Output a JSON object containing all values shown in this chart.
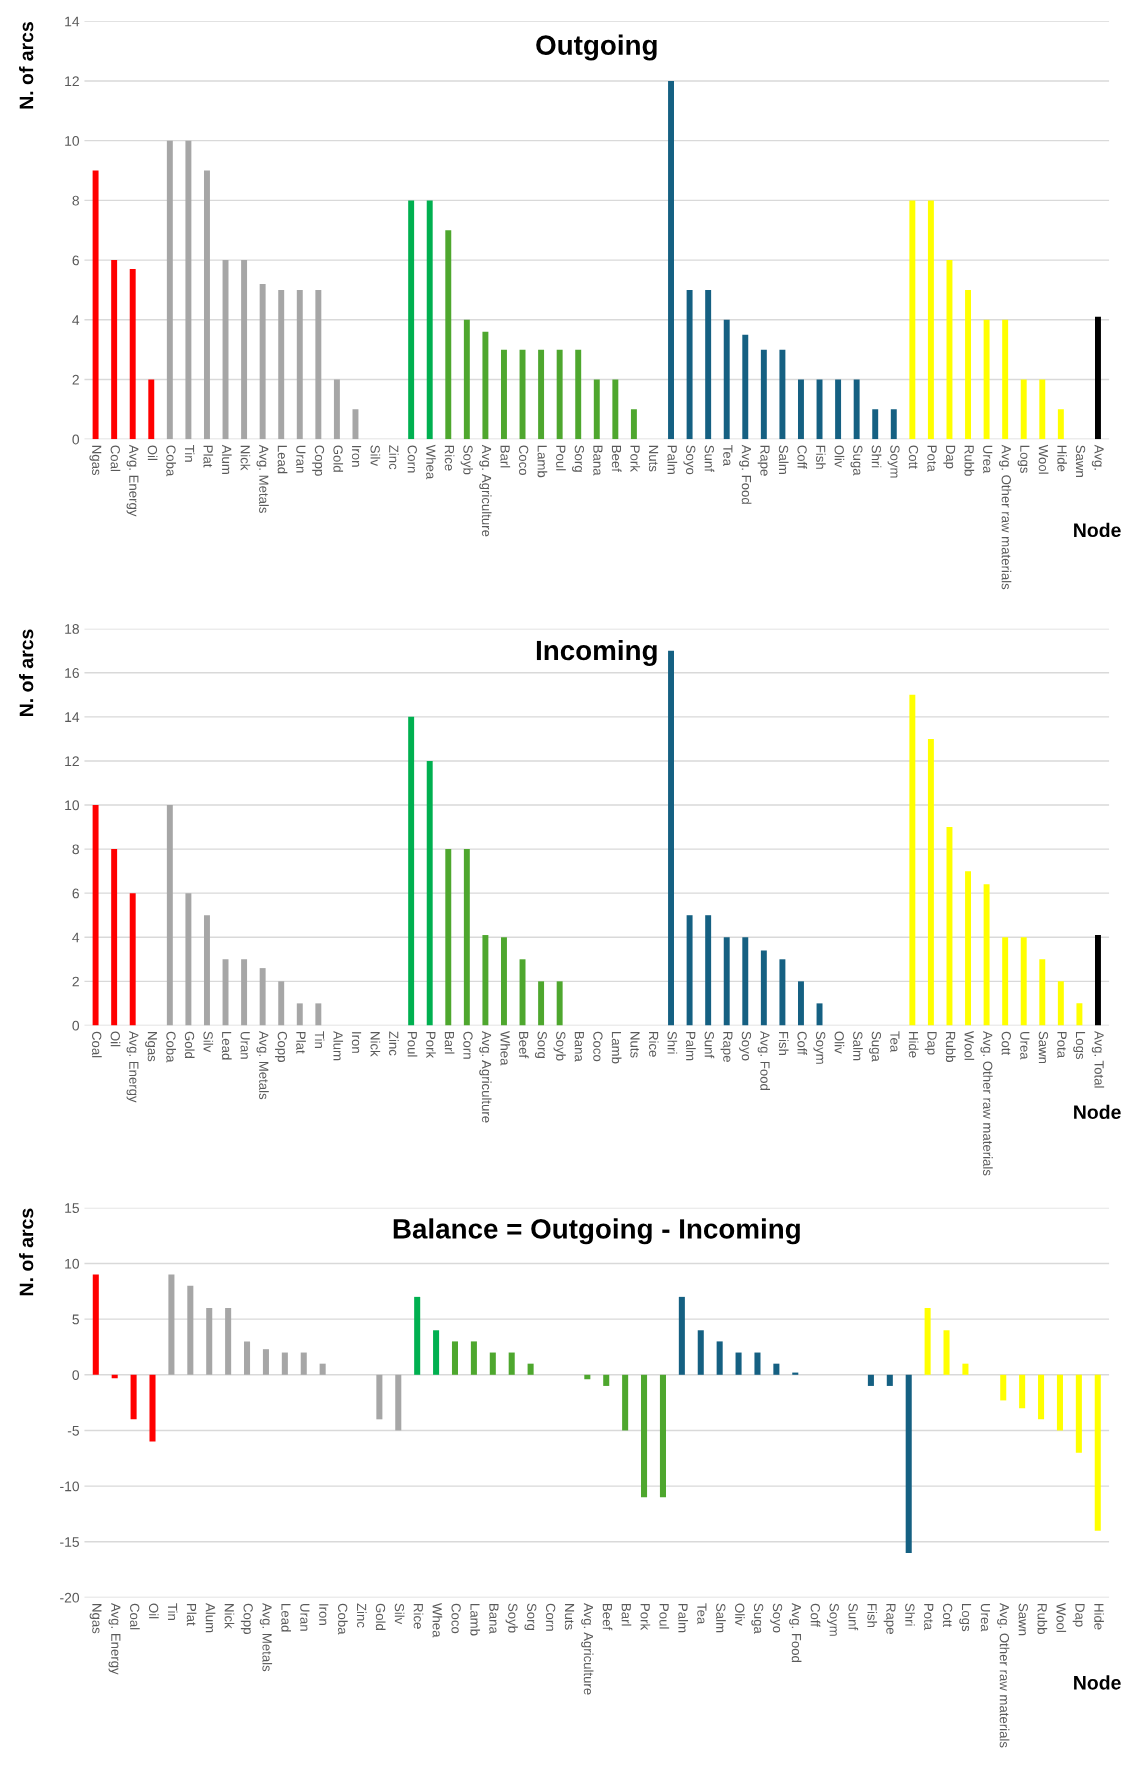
{
  "chart_data": [
    {
      "type": "bar",
      "title": "Outgoing",
      "xlabel": "Node",
      "ylabel": "N. of arcs",
      "grid": "y",
      "ylim": [
        0,
        14
      ],
      "yticks": [
        0,
        2,
        4,
        6,
        8,
        10,
        12,
        14
      ],
      "categories": [
        "Ngas",
        "Coal",
        "Avg. Energy",
        "Oil",
        "Coba",
        "Tin",
        "Plat",
        "Alum",
        "Nick",
        "Avg. Metals",
        "Lead",
        "Uran",
        "Copp",
        "Gold",
        "Iron",
        "Silv",
        "Zinc",
        "Corn",
        "Whea",
        "Rice",
        "Soyb",
        "Avg. Agriculture",
        "Barl",
        "Coco",
        "Lamb",
        "Poul",
        "Sorg",
        "Bana",
        "Beef",
        "Pork",
        "Nuts",
        "Palm",
        "Soyo",
        "Sunf",
        "Tea",
        "Avg. Food",
        "Rape",
        "Salm",
        "Coff",
        "Fish",
        "Oliv",
        "Suga",
        "Shri",
        "Soym",
        "Cott",
        "Pota",
        "Dap",
        "Rubb",
        "Urea",
        "Avg. Other raw materials",
        "Logs",
        "Wool",
        "Hide",
        "Sawn",
        "Avg."
      ],
      "values": [
        9,
        6,
        5.7,
        2,
        10,
        10,
        9,
        6,
        6,
        5.2,
        5,
        5,
        5,
        2,
        1,
        0,
        0,
        8,
        8,
        7,
        4,
        3.6,
        3,
        3,
        3,
        3,
        3,
        2,
        2,
        1,
        0,
        12,
        5,
        5,
        4,
        3.5,
        3,
        3,
        2,
        2,
        2,
        2,
        1,
        1,
        8,
        8,
        6,
        5,
        4,
        4,
        2,
        2,
        1,
        0,
        4.1
      ],
      "colors": [
        "#ff0000",
        "#ff0000",
        "#ff0000",
        "#ff0000",
        "#a6a6a6",
        "#a6a6a6",
        "#a6a6a6",
        "#a6a6a6",
        "#a6a6a6",
        "#a6a6a6",
        "#a6a6a6",
        "#a6a6a6",
        "#a6a6a6",
        "#a6a6a6",
        "#a6a6a6",
        "#a6a6a6",
        "#a6a6a6",
        "#00b050",
        "#00b050",
        "#4ea72e",
        "#4ea72e",
        "#4ea72e",
        "#4ea72e",
        "#4ea72e",
        "#4ea72e",
        "#4ea72e",
        "#4ea72e",
        "#4ea72e",
        "#4ea72e",
        "#4ea72e",
        "#4ea72e",
        "#156082",
        "#156082",
        "#156082",
        "#156082",
        "#156082",
        "#156082",
        "#156082",
        "#156082",
        "#156082",
        "#156082",
        "#156082",
        "#156082",
        "#156082",
        "#ffff00",
        "#ffff00",
        "#ffff00",
        "#ffff00",
        "#ffff00",
        "#ffff00",
        "#ffff00",
        "#ffff00",
        "#ffff00",
        "#ffff00",
        "#000000"
      ]
    },
    {
      "type": "bar",
      "title": "Incoming",
      "xlabel": "Node",
      "ylabel": "N. of arcs",
      "grid": "y",
      "ylim": [
        0,
        18
      ],
      "yticks": [
        0,
        2,
        4,
        6,
        8,
        10,
        12,
        14,
        16,
        18
      ],
      "categories": [
        "Coal",
        "Oil",
        "Avg. Energy",
        "Ngas",
        "Coba",
        "Gold",
        "Silv",
        "Lead",
        "Uran",
        "Avg. Metals",
        "Copp",
        "Plat",
        "Tin",
        "Alum",
        "Iron",
        "Nick",
        "Zinc",
        "Poul",
        "Pork",
        "Barl",
        "Corn",
        "Avg. Agriculture",
        "Whea",
        "Beef",
        "Sorg",
        "Soyb",
        "Bana",
        "Coco",
        "Lamb",
        "Nuts",
        "Rice",
        "Shri",
        "Palm",
        "Sunf",
        "Rape",
        "Soyo",
        "Avg. Food",
        "Fish",
        "Coff",
        "Soym",
        "Oliv",
        "Salm",
        "Suga",
        "Tea",
        "Hide",
        "Dap",
        "Rubb",
        "Wool",
        "Avg. Other raw materials",
        "Cott",
        "Urea",
        "Sawn",
        "Pota",
        "Logs",
        "Avg. Total"
      ],
      "values": [
        10,
        8,
        6,
        0,
        10,
        6,
        5,
        3,
        3,
        2.6,
        2,
        1,
        1,
        0,
        0,
        0,
        0,
        14,
        12,
        8,
        8,
        4.1,
        4,
        3,
        2,
        2,
        0,
        0,
        0,
        0,
        0,
        17,
        5,
        5,
        4,
        4,
        3.4,
        3,
        2,
        1,
        0,
        0,
        0,
        0,
        15,
        13,
        9,
        7,
        6.4,
        4,
        4,
        3,
        2,
        1,
        4.1
      ],
      "colors": [
        "#ff0000",
        "#ff0000",
        "#ff0000",
        "#ff0000",
        "#a6a6a6",
        "#a6a6a6",
        "#a6a6a6",
        "#a6a6a6",
        "#a6a6a6",
        "#a6a6a6",
        "#a6a6a6",
        "#a6a6a6",
        "#a6a6a6",
        "#a6a6a6",
        "#a6a6a6",
        "#a6a6a6",
        "#a6a6a6",
        "#00b050",
        "#00b050",
        "#4ea72e",
        "#4ea72e",
        "#4ea72e",
        "#4ea72e",
        "#4ea72e",
        "#4ea72e",
        "#4ea72e",
        "#4ea72e",
        "#4ea72e",
        "#4ea72e",
        "#4ea72e",
        "#4ea72e",
        "#156082",
        "#156082",
        "#156082",
        "#156082",
        "#156082",
        "#156082",
        "#156082",
        "#156082",
        "#156082",
        "#156082",
        "#156082",
        "#156082",
        "#156082",
        "#ffff00",
        "#ffff00",
        "#ffff00",
        "#ffff00",
        "#ffff00",
        "#ffff00",
        "#ffff00",
        "#ffff00",
        "#ffff00",
        "#ffff00",
        "#000000"
      ]
    },
    {
      "type": "bar",
      "title": "Balance = Outgoing - Incoming",
      "xlabel": "Node",
      "ylabel": "N. of arcs",
      "grid": "y",
      "ylim": [
        -20,
        15
      ],
      "yticks": [
        -20,
        -15,
        -10,
        -5,
        0,
        5,
        10,
        15
      ],
      "categories": [
        "Ngas",
        "Avg. Energy",
        "Coal",
        "Oil",
        "Tin",
        "Plat",
        "Alum",
        "Nick",
        "Copp",
        "Avg. Metals",
        "Lead",
        "Uran",
        "Iron",
        "Coba",
        "Zinc",
        "Gold",
        "Silv",
        "Rice",
        "Whea",
        "Coco",
        "Lamb",
        "Bana",
        "Soyb",
        "Sorg",
        "Corn",
        "Nuts",
        "Avg. Agriculture",
        "Beef",
        "Barl",
        "Pork",
        "Poul",
        "Palm",
        "Tea",
        "Salm",
        "Oliv",
        "Suga",
        "Soyo",
        "Avg. Food",
        "Coff",
        "Soym",
        "Sunf",
        "Fish",
        "Rape",
        "Shri",
        "Pota",
        "Cott",
        "Logs",
        "Urea",
        "Avg. Other raw materials",
        "Sawn",
        "Rubb",
        "Wool",
        "Dap",
        "Hide"
      ],
      "values": [
        9,
        -0.3,
        -4,
        -6,
        9,
        8,
        6,
        6,
        3,
        2.3,
        2,
        2,
        1,
        0,
        0,
        -4,
        -5,
        7,
        4,
        3,
        3,
        2,
        2,
        1,
        0,
        0,
        -0.4,
        -1,
        -5,
        -11,
        -11,
        7,
        4,
        3,
        2,
        2,
        1,
        0.2,
        0,
        0,
        0,
        -1,
        -1,
        -16,
        6,
        4,
        1,
        0,
        -2.3,
        -3,
        -4,
        -5,
        -7,
        -14
      ],
      "colors": [
        "#ff0000",
        "#ff0000",
        "#ff0000",
        "#ff0000",
        "#a6a6a6",
        "#a6a6a6",
        "#a6a6a6",
        "#a6a6a6",
        "#a6a6a6",
        "#a6a6a6",
        "#a6a6a6",
        "#a6a6a6",
        "#a6a6a6",
        "#a6a6a6",
        "#a6a6a6",
        "#a6a6a6",
        "#a6a6a6",
        "#00b050",
        "#00b050",
        "#4ea72e",
        "#4ea72e",
        "#4ea72e",
        "#4ea72e",
        "#4ea72e",
        "#4ea72e",
        "#4ea72e",
        "#4ea72e",
        "#4ea72e",
        "#4ea72e",
        "#4ea72e",
        "#4ea72e",
        "#156082",
        "#156082",
        "#156082",
        "#156082",
        "#156082",
        "#156082",
        "#156082",
        "#156082",
        "#156082",
        "#156082",
        "#156082",
        "#156082",
        "#156082",
        "#ffff00",
        "#ffff00",
        "#ffff00",
        "#ffff00",
        "#ffff00",
        "#ffff00",
        "#ffff00",
        "#ffff00",
        "#ffff00",
        "#ffff00"
      ]
    }
  ]
}
